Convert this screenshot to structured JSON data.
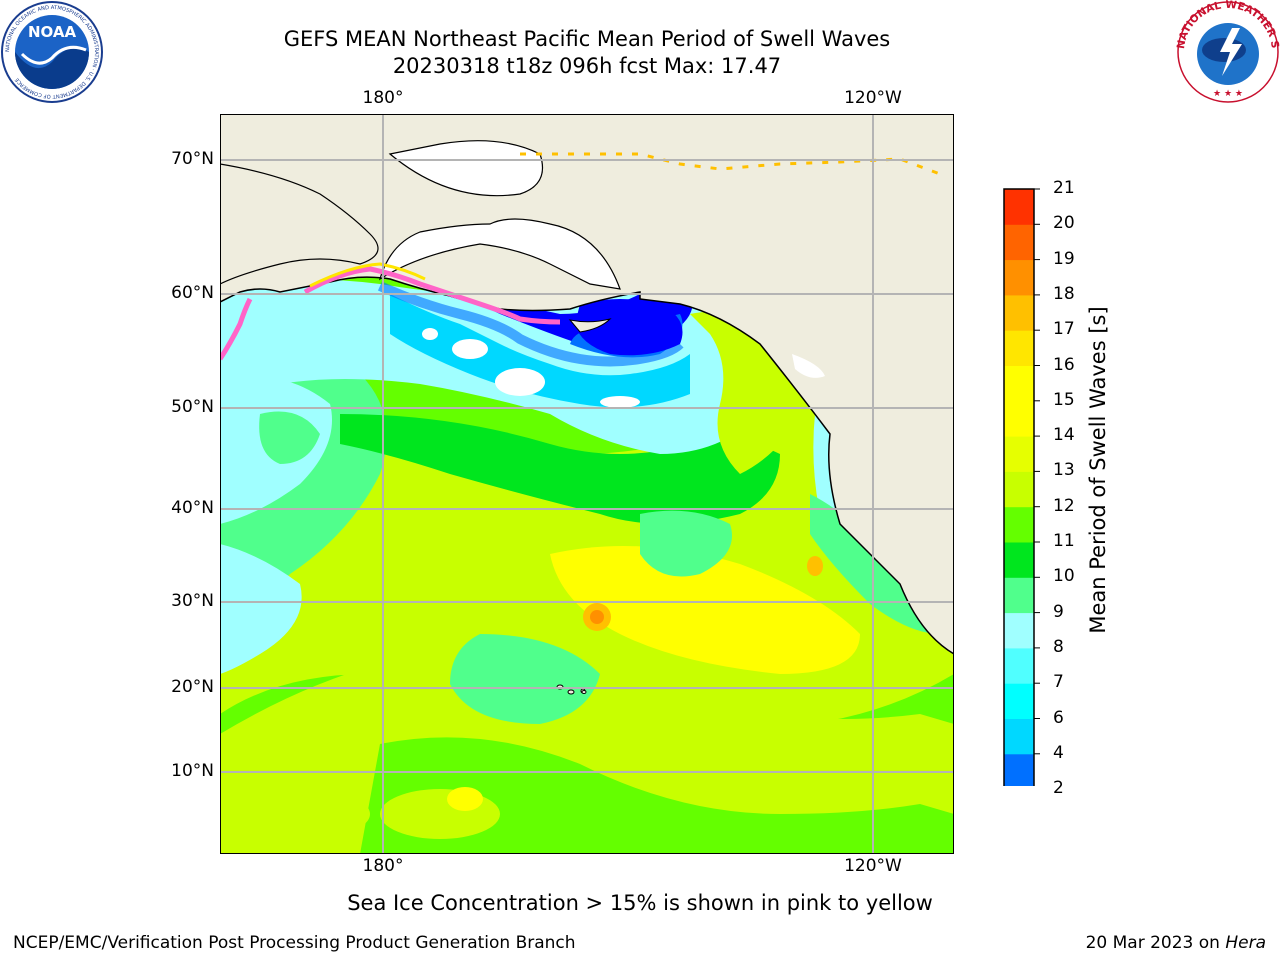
{
  "title": {
    "line1": "GEFS MEAN Northeast Pacific Mean Period of Swell Waves",
    "line2": "20230318 t18z 096h fcst   Max: 17.47"
  },
  "map": {
    "projection": "cylindrical lat/lon",
    "lon_ticks": [
      {
        "value": 180,
        "label": "180°"
      },
      {
        "value": -120,
        "label": "120°W"
      }
    ],
    "lat_ticks": [
      {
        "value": 70,
        "label": "70°N"
      },
      {
        "value": 60,
        "label": "60°N"
      },
      {
        "value": 50,
        "label": "50°N"
      },
      {
        "value": 40,
        "label": "40°N"
      },
      {
        "value": 30,
        "label": "30°N"
      },
      {
        "value": 20,
        "label": "20°N"
      },
      {
        "value": 10,
        "label": "10°N"
      }
    ],
    "land_color": "#efedde",
    "grid_color": "#b4b4b4"
  },
  "colorbar": {
    "title": "Mean Period of Swell Waves [s]",
    "levels": [
      2,
      4,
      6,
      7,
      8,
      9,
      10,
      11,
      12,
      13,
      14,
      15,
      16,
      17,
      18,
      19,
      20,
      21
    ],
    "labels": [
      "2",
      "4",
      "6",
      "7",
      "8",
      "9",
      "10",
      "11",
      "12",
      "13",
      "14",
      "15",
      "16",
      "17",
      "18",
      "19",
      "20",
      "21"
    ],
    "colors": [
      "#0070ff",
      "#00d8ff",
      "#00ffff",
      "#50ffff",
      "#a0ffff",
      "#50ff8c",
      "#00e61e",
      "#64ff00",
      "#c8ff00",
      "#e6ff00",
      "#ffff00",
      "#ffff00",
      "#ffe600",
      "#ffc000",
      "#ff9000",
      "#ff6400",
      "#ff3200",
      "#ff0000"
    ],
    "extend_low_color": "#0000ff"
  },
  "note": "Sea Ice Concentration > 15% is shown in pink to yellow",
  "footer": {
    "left": "NCEP/EMC/Verification Post Processing Product Generation Branch",
    "right_prefix": "20 Mar 2023 on ",
    "right_host": "Hera"
  },
  "logos": {
    "noaa_text": "NOAA",
    "noaa_ring_text": "NATIONAL OCEANIC AND ATMOSPHERIC ADMINISTRATION · U.S. DEPARTMENT OF COMMERCE",
    "nws_ring_text": "NATIONAL WEATHER SERVICE"
  }
}
